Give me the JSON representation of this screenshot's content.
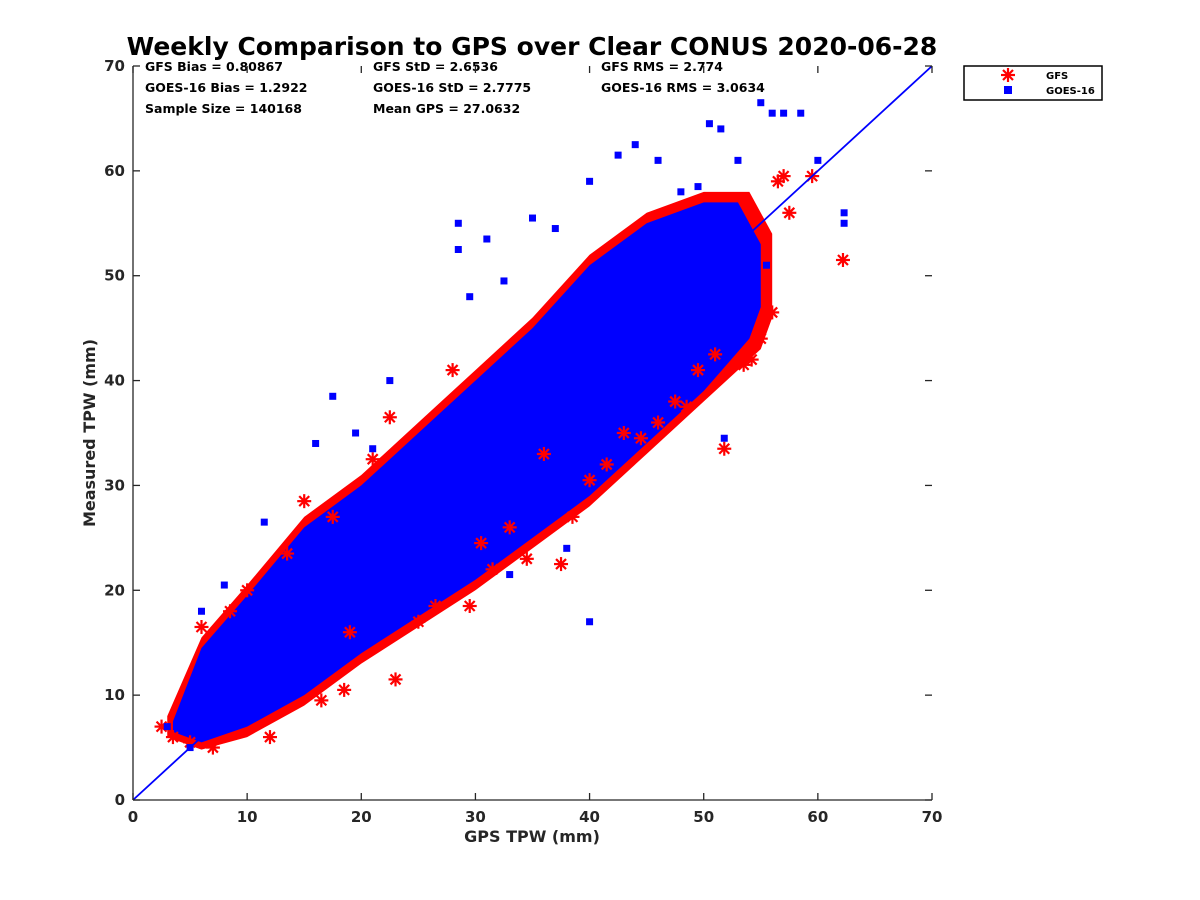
{
  "chart_data": {
    "type": "scatter",
    "title": "Weekly Comparison to GPS over Clear CONUS 2020-06-28",
    "xlabel": "GPS TPW (mm)",
    "ylabel": "Measured TPW (mm)",
    "xlim": [
      0,
      70
    ],
    "ylim": [
      0,
      70
    ],
    "xticks": [
      "0",
      "10",
      "20",
      "30",
      "40",
      "50",
      "60",
      "70"
    ],
    "yticks": [
      "0",
      "10",
      "20",
      "30",
      "40",
      "50",
      "60",
      "70"
    ],
    "grid": false,
    "legend_position": "outside-top-right",
    "reference_line": {
      "x": [
        0,
        70
      ],
      "y": [
        0,
        70
      ],
      "color": "#0000ff"
    },
    "stats": [
      [
        "GFS Bias = 0.80867",
        "GFS StD = 2.6536",
        "GFS RMS = 2.774"
      ],
      [
        "GOES-16 Bias = 1.2922",
        "GOES-16 StD = 2.7775",
        "GOES-16 RMS = 3.0634"
      ],
      [
        "Sample Size = 140168",
        "Mean GPS = 27.0632",
        ""
      ]
    ],
    "series": [
      {
        "name": "GFS",
        "marker": "asterisk",
        "color": "#ff0000",
        "x": [
          2.5,
          3.5,
          5.0,
          6.0,
          7.0,
          8.5,
          10.0,
          12.0,
          13.5,
          15.0,
          16.5,
          17.5,
          18.5,
          19.0,
          21.0,
          22.5,
          23.0,
          25.0,
          26.5,
          28.0,
          29.5,
          30.5,
          31.5,
          33.0,
          34.5,
          36.0,
          37.5,
          38.5,
          40.0,
          41.5,
          43.0,
          44.5,
          46.0,
          47.5,
          48.5,
          49.5,
          51.0,
          51.8,
          53.5,
          54.2,
          55.0,
          56.0,
          56.5,
          57.0,
          57.5,
          59.5,
          62.2
        ],
        "y": [
          7.0,
          6.0,
          5.5,
          16.5,
          5.0,
          18.0,
          20.0,
          6.0,
          23.5,
          28.5,
          9.5,
          27.0,
          10.5,
          16.0,
          32.5,
          36.5,
          11.5,
          17.0,
          18.5,
          41.0,
          18.5,
          24.5,
          22.0,
          26.0,
          23.0,
          33.0,
          22.5,
          27.0,
          30.5,
          32.0,
          35.0,
          34.5,
          36.0,
          38.0,
          37.5,
          41.0,
          42.5,
          33.5,
          41.5,
          42.0,
          44.0,
          46.5,
          59.0,
          59.5,
          56.0,
          59.5,
          51.5
        ]
      },
      {
        "name": "GOES-16",
        "marker": "square",
        "color": "#0000ff",
        "x": [
          3.0,
          5.0,
          6.0,
          8.0,
          11.5,
          16.0,
          17.5,
          19.5,
          21.0,
          22.5,
          25.5,
          28.5,
          28.5,
          29.5,
          31.0,
          32.5,
          33.0,
          35.0,
          37.0,
          38.0,
          40.0,
          40.0,
          42.5,
          44.0,
          46.0,
          48.0,
          49.5,
          50.5,
          51.5,
          51.8,
          53.0,
          55.0,
          56.0,
          57.0,
          58.5,
          60.0,
          62.3,
          62.3,
          52.0,
          55.5,
          42.0,
          36.0
        ],
        "y": [
          7.0,
          5.0,
          18.0,
          20.5,
          26.5,
          34.0,
          38.5,
          35.0,
          33.5,
          40.0,
          19.5,
          55.0,
          52.5,
          48.0,
          53.5,
          49.5,
          21.5,
          55.5,
          54.5,
          24.0,
          59.0,
          17.0,
          61.5,
          62.5,
          61.0,
          58.0,
          58.5,
          64.5,
          64.0,
          34.5,
          61.0,
          66.5,
          65.5,
          65.5,
          65.5,
          61.0,
          56.0,
          55.0,
          51.5,
          51.0,
          44.0,
          38.5
        ]
      }
    ]
  }
}
